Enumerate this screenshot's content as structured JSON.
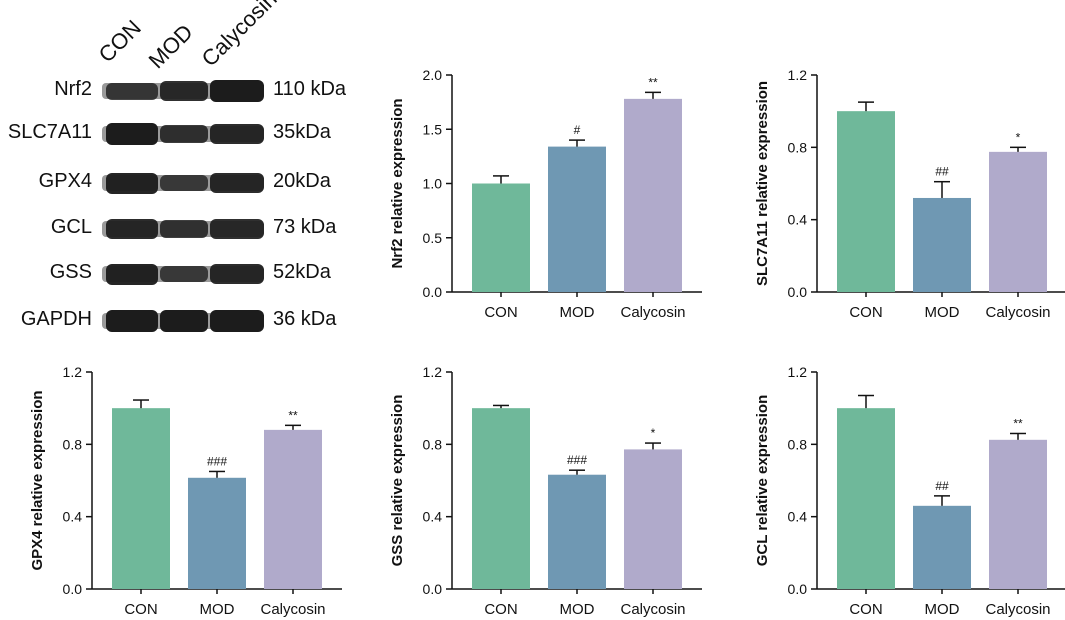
{
  "blot": {
    "lanes": [
      "CON",
      "MOD",
      "Calycosin"
    ],
    "rows": [
      {
        "protein": "Nrf2",
        "kda": "110 kDa",
        "intensity": [
          0.55,
          0.8,
          1.0
        ]
      },
      {
        "protein": "SLC7A11",
        "kda": "35kDa",
        "intensity": [
          1.0,
          0.7,
          0.85
        ]
      },
      {
        "protein": "GPX4",
        "kda": "20kDa",
        "intensity": [
          0.9,
          0.5,
          0.85
        ]
      },
      {
        "protein": "GCL",
        "kda": "73 kDa",
        "intensity": [
          0.85,
          0.65,
          0.8
        ]
      },
      {
        "protein": "GSS",
        "kda": "52kDa",
        "intensity": [
          0.9,
          0.5,
          0.85
        ]
      },
      {
        "protein": "GAPDH",
        "kda": "36 kDa",
        "intensity": [
          1.0,
          1.0,
          1.0
        ]
      }
    ]
  },
  "colors": {
    "CON": "#6fb89a",
    "MOD": "#6f98b3",
    "Calycosin": "#b0aacb",
    "text": "#111111"
  },
  "chart_data": [
    {
      "type": "bar",
      "categories": [
        "CON",
        "MOD",
        "Calycosin"
      ],
      "values": [
        1.0,
        1.34,
        1.78
      ],
      "errors": [
        0.07,
        0.06,
        0.06
      ],
      "annotations": [
        "",
        "#",
        "**"
      ],
      "ylabel": "Nrf2 relative expression",
      "ylim": [
        0,
        2.0
      ],
      "yticks": [
        "0.0",
        "0.5",
        "1.0",
        "1.5",
        "2.0"
      ]
    },
    {
      "type": "bar",
      "categories": [
        "CON",
        "MOD",
        "Calycosin"
      ],
      "values": [
        1.0,
        0.52,
        0.775
      ],
      "errors": [
        0.05,
        0.09,
        0.025
      ],
      "annotations": [
        "",
        "##",
        "*"
      ],
      "ylabel": "SLC7A11 relative expression",
      "ylim": [
        0,
        1.2
      ],
      "yticks": [
        "0.0",
        "0.4",
        "0.8",
        "1.2"
      ]
    },
    {
      "type": "bar",
      "categories": [
        "CON",
        "MOD",
        "Calycosin"
      ],
      "values": [
        1.0,
        0.615,
        0.88
      ],
      "errors": [
        0.045,
        0.035,
        0.025
      ],
      "annotations": [
        "",
        "###",
        "**"
      ],
      "ylabel": "GPX4 relative expression",
      "ylim": [
        0,
        1.2
      ],
      "yticks": [
        "0.0",
        "0.4",
        "0.8",
        "1.2"
      ]
    },
    {
      "type": "bar",
      "categories": [
        "CON",
        "MOD",
        "Calycosin"
      ],
      "values": [
        1.0,
        0.632,
        0.772
      ],
      "errors": [
        0.015,
        0.025,
        0.035
      ],
      "annotations": [
        "",
        "###",
        "*"
      ],
      "ylabel": "GSS relative expression",
      "ylim": [
        0,
        1.2
      ],
      "yticks": [
        "0.0",
        "0.4",
        "0.8",
        "1.2"
      ]
    },
    {
      "type": "bar",
      "categories": [
        "CON",
        "MOD",
        "Calycosin"
      ],
      "values": [
        1.0,
        0.46,
        0.825
      ],
      "errors": [
        0.07,
        0.055,
        0.035
      ],
      "annotations": [
        "",
        "##",
        "**"
      ],
      "ylabel": "GCL relative expression",
      "ylim": [
        0,
        1.2
      ],
      "yticks": [
        "0.0",
        "0.4",
        "0.8",
        "1.2"
      ]
    }
  ]
}
